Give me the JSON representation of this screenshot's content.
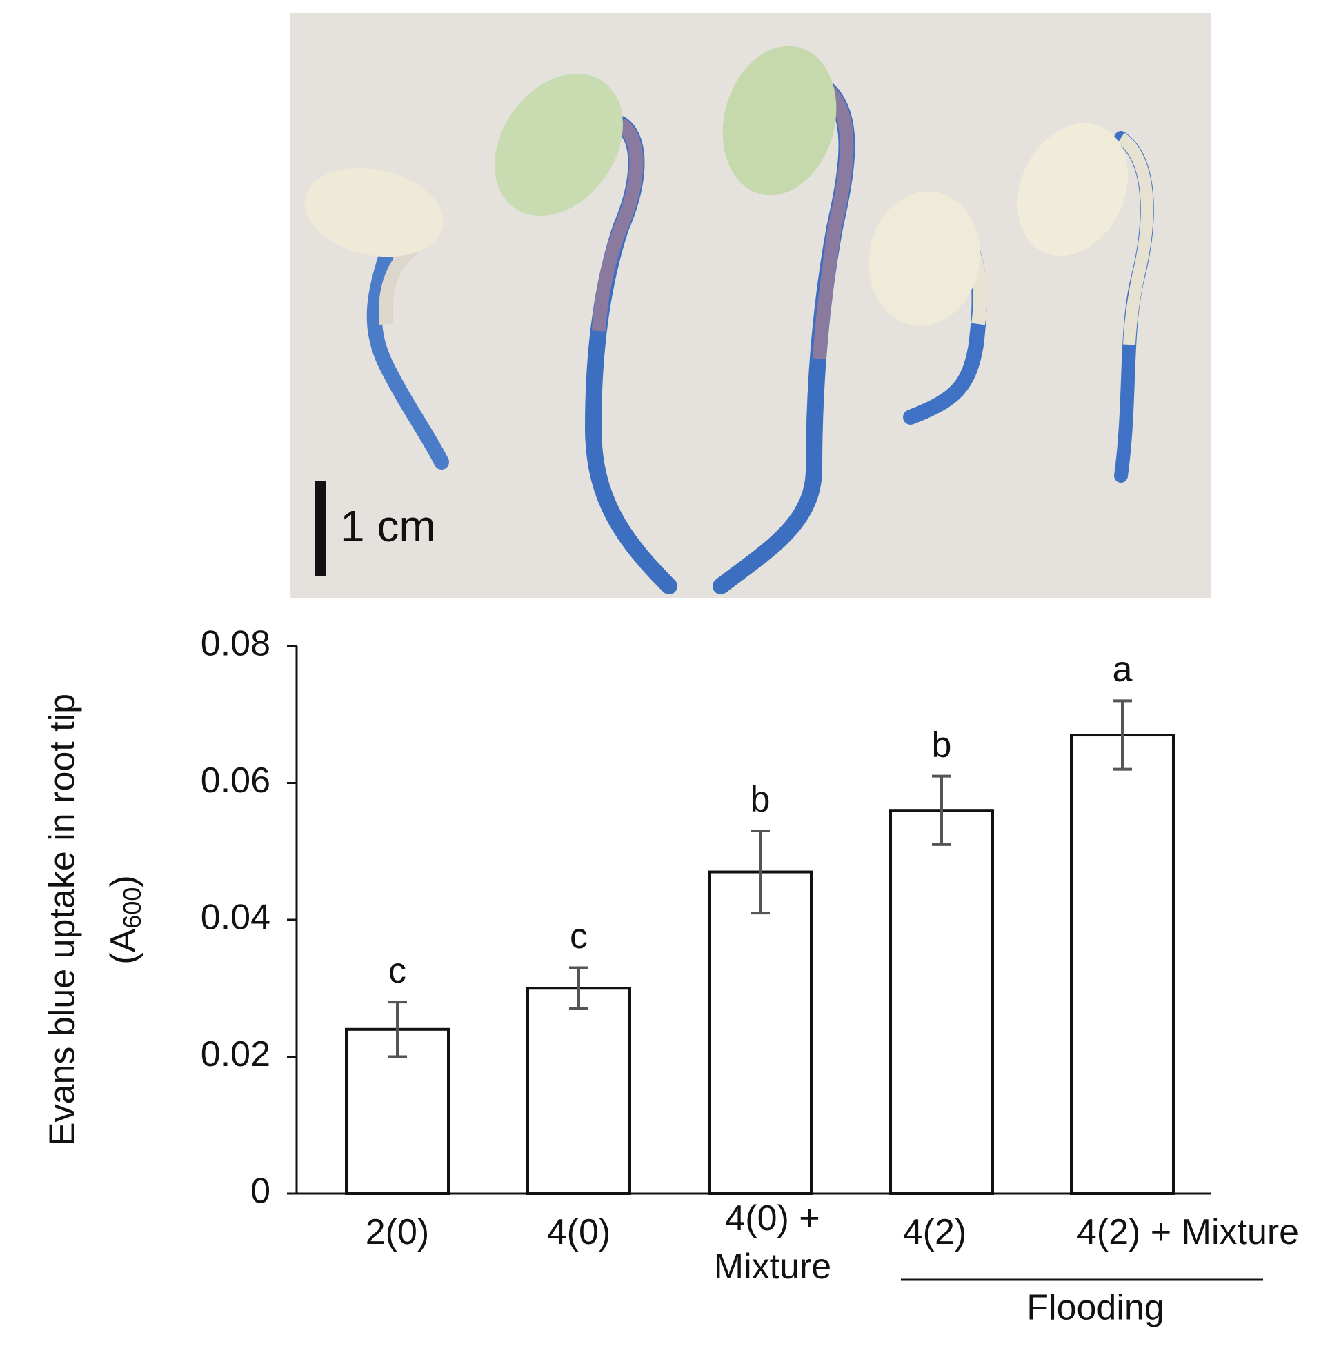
{
  "chart_data": {
    "type": "bar",
    "scale_bar_label": "1 cm",
    "y_label": "Evans blue uptake in root tip",
    "y_label_unit": [
      "(A",
      "600",
      ")"
    ],
    "categories": [
      [
        "2(0)"
      ],
      [
        "4(0)"
      ],
      [
        "4(0) +",
        "Mixture"
      ],
      [
        "4(2)"
      ],
      [
        "4(2) + Mixture"
      ]
    ],
    "values": [
      0.024,
      0.03,
      0.047,
      0.056,
      0.067
    ],
    "errors": [
      0.004,
      0.003,
      0.006,
      0.005,
      0.005
    ],
    "letters": [
      "c",
      "c",
      "b",
      "b",
      "a"
    ],
    "group_label": "Flooding",
    "color": "#ffffff",
    "ylim": [
      0,
      0.08
    ],
    "yticks": [
      0,
      0.02,
      0.04,
      0.06,
      0.08
    ],
    "grid": false
  }
}
